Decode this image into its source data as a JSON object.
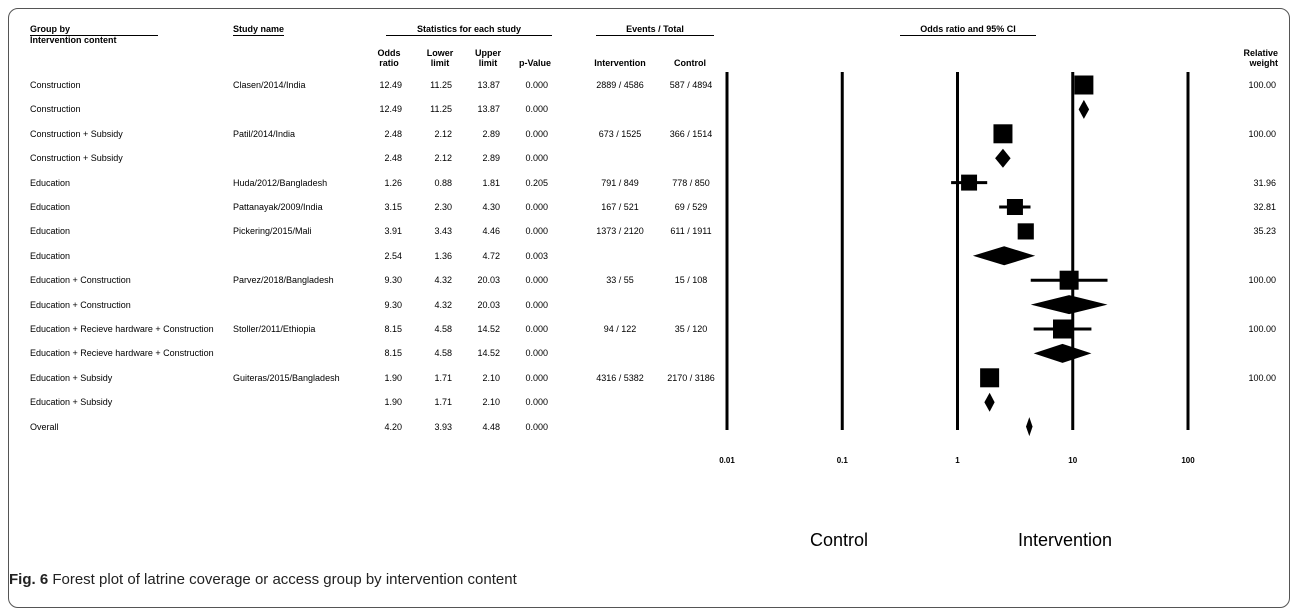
{
  "headers": {
    "group_by": "Group by",
    "group_sub": "Intervention content",
    "study_name": "Study name",
    "stats_title": "Statistics for each study",
    "events_title": "Events / Total",
    "plot_title": "Odds ratio and 95% CI",
    "odds_ratio": "Odds ratio",
    "lower_limit": "Lower limit",
    "upper_limit": "Upper limit",
    "p_value": "p-Value",
    "intervention": "Intervention",
    "control": "Control",
    "relative_weight": "Relative weight"
  },
  "chart_data": {
    "type": "forest",
    "title": "Odds ratio and 95% CI",
    "x_scale": "log",
    "x_ticks": [
      "0.01",
      "0.1",
      "1",
      "10",
      "100"
    ],
    "xlim": [
      0.01,
      100
    ],
    "direction_labels": {
      "left": "Control",
      "right": "Intervention"
    },
    "rows": [
      {
        "group": "Construction",
        "study": "Clasen/2014/India",
        "or": "12.49",
        "lower": "11.25",
        "upper": "13.87",
        "p": "0.000",
        "intervention": "2889 / 4586",
        "control": "587 / 4894",
        "weight": "100.00",
        "kind": "study",
        "or_v": 12.49,
        "lo_v": 11.25,
        "hi_v": 13.87,
        "w_v": 100.0
      },
      {
        "group": "Construction",
        "study": "",
        "or": "12.49",
        "lower": "11.25",
        "upper": "13.87",
        "p": "0.000",
        "intervention": "",
        "control": "",
        "weight": "",
        "kind": "summary",
        "or_v": 12.49,
        "lo_v": 11.25,
        "hi_v": 13.87
      },
      {
        "group": "Construction + Subsidy",
        "study": "Patil/2014/India",
        "or": "2.48",
        "lower": "2.12",
        "upper": "2.89",
        "p": "0.000",
        "intervention": "673 / 1525",
        "control": "366 / 1514",
        "weight": "100.00",
        "kind": "study",
        "or_v": 2.48,
        "lo_v": 2.12,
        "hi_v": 2.89,
        "w_v": 100.0
      },
      {
        "group": "Construction + Subsidy",
        "study": "",
        "or": "2.48",
        "lower": "2.12",
        "upper": "2.89",
        "p": "0.000",
        "intervention": "",
        "control": "",
        "weight": "",
        "kind": "summary",
        "or_v": 2.48,
        "lo_v": 2.12,
        "hi_v": 2.89
      },
      {
        "group": "Education",
        "study": "Huda/2012/Bangladesh",
        "or": "1.26",
        "lower": "0.88",
        "upper": "1.81",
        "p": "0.205",
        "intervention": "791 / 849",
        "control": "778 / 850",
        "weight": "31.96",
        "kind": "study",
        "or_v": 1.26,
        "lo_v": 0.88,
        "hi_v": 1.81,
        "w_v": 31.96
      },
      {
        "group": "Education",
        "study": "Pattanayak/2009/India",
        "or": "3.15",
        "lower": "2.30",
        "upper": "4.30",
        "p": "0.000",
        "intervention": "167 / 521",
        "control": "69 / 529",
        "weight": "32.81",
        "kind": "study",
        "or_v": 3.15,
        "lo_v": 2.3,
        "hi_v": 4.3,
        "w_v": 32.81
      },
      {
        "group": "Education",
        "study": "Pickering/2015/Mali",
        "or": "3.91",
        "lower": "3.43",
        "upper": "4.46",
        "p": "0.000",
        "intervention": "1373 / 2120",
        "control": "611 / 1911",
        "weight": "35.23",
        "kind": "study",
        "or_v": 3.91,
        "lo_v": 3.43,
        "hi_v": 4.46,
        "w_v": 35.23
      },
      {
        "group": "Education",
        "study": "",
        "or": "2.54",
        "lower": "1.36",
        "upper": "4.72",
        "p": "0.003",
        "intervention": "",
        "control": "",
        "weight": "",
        "kind": "summary",
        "or_v": 2.54,
        "lo_v": 1.36,
        "hi_v": 4.72
      },
      {
        "group": "Education + Construction",
        "study": "Parvez/2018/Bangladesh",
        "or": "9.30",
        "lower": "4.32",
        "upper": "20.03",
        "p": "0.000",
        "intervention": "33 / 55",
        "control": "15 / 108",
        "weight": "100.00",
        "kind": "study",
        "or_v": 9.3,
        "lo_v": 4.32,
        "hi_v": 20.03,
        "w_v": 100.0
      },
      {
        "group": "Education + Construction",
        "study": "",
        "or": "9.30",
        "lower": "4.32",
        "upper": "20.03",
        "p": "0.000",
        "intervention": "",
        "control": "",
        "weight": "",
        "kind": "summary",
        "or_v": 9.3,
        "lo_v": 4.32,
        "hi_v": 20.03
      },
      {
        "group": "Education + Recieve hardware + Construction",
        "study": "Stoller/2011/Ethiopia",
        "or": "8.15",
        "lower": "4.58",
        "upper": "14.52",
        "p": "0.000",
        "intervention": "94 / 122",
        "control": "35 / 120",
        "weight": "100.00",
        "kind": "study",
        "or_v": 8.15,
        "lo_v": 4.58,
        "hi_v": 14.52,
        "w_v": 100.0
      },
      {
        "group": "Education + Recieve hardware + Construction",
        "study": "",
        "or": "8.15",
        "lower": "4.58",
        "upper": "14.52",
        "p": "0.000",
        "intervention": "",
        "control": "",
        "weight": "",
        "kind": "summary",
        "or_v": 8.15,
        "lo_v": 4.58,
        "hi_v": 14.52
      },
      {
        "group": "Education + Subsidy",
        "study": "Guiteras/2015/Bangladesh",
        "or": "1.90",
        "lower": "1.71",
        "upper": "2.10",
        "p": "0.000",
        "intervention": "4316 / 5382",
        "control": "2170 / 3186",
        "weight": "100.00",
        "kind": "study",
        "or_v": 1.9,
        "lo_v": 1.71,
        "hi_v": 2.1,
        "w_v": 100.0
      },
      {
        "group": "Education + Subsidy",
        "study": "",
        "or": "1.90",
        "lower": "1.71",
        "upper": "2.10",
        "p": "0.000",
        "intervention": "",
        "control": "",
        "weight": "",
        "kind": "summary",
        "or_v": 1.9,
        "lo_v": 1.71,
        "hi_v": 2.1
      },
      {
        "group": "Overall",
        "study": "",
        "or": "4.20",
        "lower": "3.93",
        "upper": "4.48",
        "p": "0.000",
        "intervention": "",
        "control": "",
        "weight": "",
        "kind": "summary",
        "or_v": 4.2,
        "lo_v": 3.93,
        "hi_v": 4.48
      }
    ]
  },
  "caption": {
    "label": "Fig. 6",
    "text": "Forest plot of latrine coverage or access group by intervention content"
  }
}
